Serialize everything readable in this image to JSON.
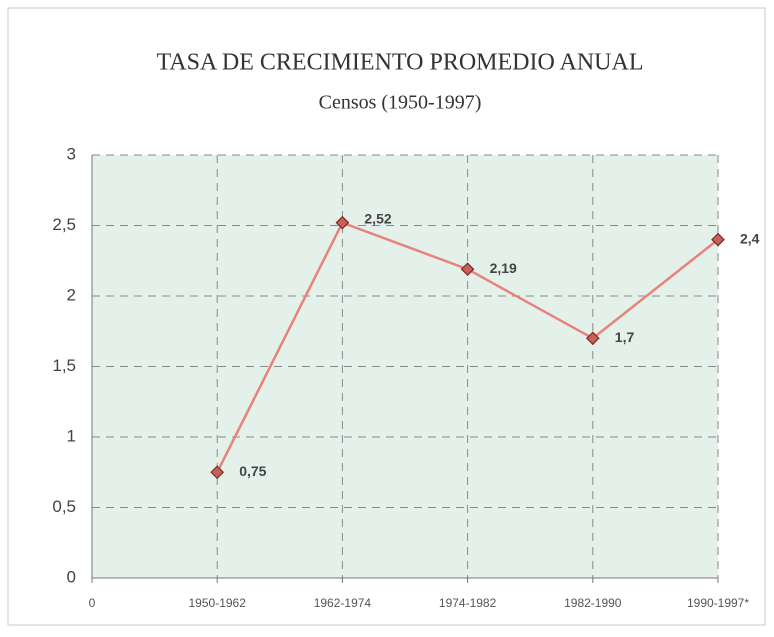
{
  "chart_data": {
    "type": "line",
    "title": "TASA DE CRECIMIENTO PROMEDIO ANUAL",
    "subtitle": "Censos (1950-1997)",
    "categories": [
      "0",
      "1950-1962",
      "1962-1974",
      "1974-1982",
      "1982-1990",
      "1990-1997*"
    ],
    "series": [
      {
        "name": "Tasa",
        "color": "#e8827a",
        "values": [
          null,
          0.75,
          2.52,
          2.19,
          1.7,
          2.4
        ],
        "value_labels": [
          null,
          "0,75",
          "2,52",
          "2,19",
          "1,7",
          "2,4"
        ]
      }
    ],
    "ylim": [
      0,
      3
    ],
    "yticks": [
      0,
      {
        "value": 0.5,
        "label": "0,5"
      },
      1,
      {
        "value": 1.5,
        "label": "1,5"
      },
      2,
      {
        "value": 2.5,
        "label": "2,5"
      },
      3
    ],
    "grid": true
  }
}
